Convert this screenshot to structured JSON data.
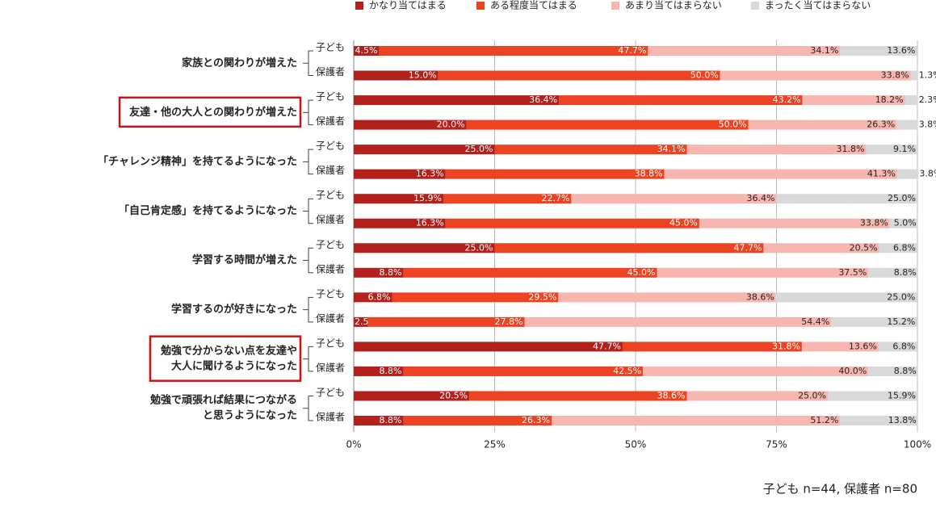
{
  "chart_data": {
    "type": "stacked_barh",
    "groups": [
      [
        "家族との関わりが増えた"
      ],
      [
        "友達・他の大人との関わりが増えた"
      ],
      [
        "「チャレンジ精神」を持てるようになった"
      ],
      [
        "「自己肯定感」を持てるようになった"
      ],
      [
        "学習する時間が増えた"
      ],
      [
        "学習するのが好きになった"
      ],
      [
        "勉強で分からない点を友達や",
        "大人に聞けるようになった"
      ],
      [
        "勉強で頑張れば結果につながる",
        "と思うようになった"
      ]
    ],
    "highlighted_groups": [
      1,
      6
    ],
    "categories": [
      "子ども",
      "保護者",
      "子ども",
      "保護者",
      "子ども",
      "保護者",
      "子ども",
      "保護者",
      "子ども",
      "保護者",
      "子ども",
      "保護者",
      "子ども",
      "保護者",
      "子ども",
      "保護者"
    ],
    "series": [
      {
        "name": "かなり当てはまる",
        "color": "#b3211c",
        "values": [
          4.5,
          15.0,
          36.4,
          20.0,
          25.0,
          16.3,
          15.9,
          16.3,
          25.0,
          8.8,
          6.8,
          2.5,
          47.7,
          8.8,
          20.5,
          8.8
        ],
        "value_labels": [
          "4.5%",
          "15.0%",
          "36.4%",
          "20.0%",
          "25.0%",
          "16.3%",
          "15.9%",
          "16.3%",
          "25.0%",
          "8.8%",
          "6.8%",
          "2.5%",
          "47.7%",
          "8.8%",
          "20.5%",
          "8.8%"
        ]
      },
      {
        "name": "ある程度当てはまる",
        "color": "#ee4323",
        "values": [
          47.7,
          50.0,
          43.2,
          50.0,
          34.1,
          38.8,
          22.7,
          45.0,
          47.7,
          45.0,
          29.5,
          27.8,
          31.8,
          42.5,
          38.6,
          26.3
        ],
        "value_labels": [
          "47.7%",
          "50.0%",
          "43.2%",
          "50.0%",
          "34.1%",
          "38.8%",
          "22.7%",
          "45.0%",
          "47.7%",
          "45.0%",
          "29.5%",
          "27.8%",
          "31.8%",
          "42.5%",
          "38.6%",
          "26.3%"
        ]
      },
      {
        "name": "あまり当てはまらない",
        "color": "#f7b7b0",
        "values": [
          34.1,
          33.8,
          18.2,
          26.3,
          31.8,
          41.3,
          36.4,
          33.8,
          20.5,
          37.5,
          38.6,
          54.4,
          13.6,
          40.0,
          25.0,
          51.2
        ],
        "value_labels": [
          "34.1%",
          "33.8%",
          "18.2%",
          "26.3%",
          "31.8%",
          "41.3%",
          "36.4%",
          "33.8%",
          "20.5%",
          "37.5%",
          "38.6%",
          "54.4%",
          "13.6%",
          "40.0%",
          "25.0%",
          "51.2%"
        ]
      },
      {
        "name": "まったく当てはまらない",
        "color": "#d9d9d9",
        "values": [
          13.6,
          1.3,
          2.3,
          3.8,
          9.1,
          3.8,
          25.0,
          5.0,
          6.8,
          8.8,
          25.0,
          15.2,
          6.8,
          8.8,
          15.9,
          13.8
        ],
        "value_labels": [
          "13.6%",
          "1.3%",
          "2.3%",
          "3.8%",
          "9.1%",
          "3.8%",
          "25.0%",
          "5.0%",
          "6.8%",
          "8.8%",
          "25.0%",
          "15.2%",
          "6.8%",
          "8.8%",
          "15.9%",
          "13.8%"
        ]
      }
    ],
    "xlim": [
      0,
      100
    ],
    "xticks": [
      {
        "value": 0,
        "label": "0%"
      },
      {
        "value": 25,
        "label": "25%"
      },
      {
        "value": 50,
        "label": "50%"
      },
      {
        "value": 75,
        "label": "75%"
      },
      {
        "value": 100,
        "label": "100%"
      }
    ],
    "grid": true,
    "legend": "top",
    "note": "子ども n=44, 保護者 n=80"
  }
}
